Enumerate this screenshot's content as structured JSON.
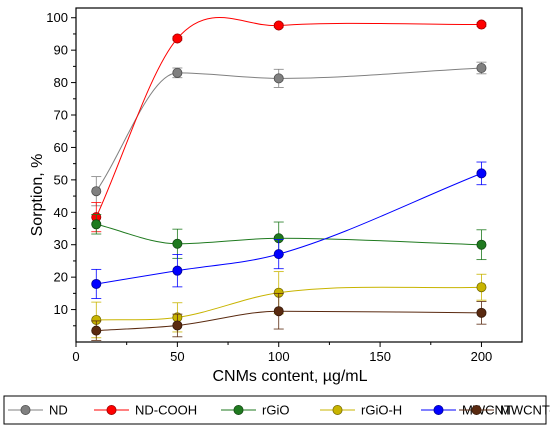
{
  "chart_data": {
    "type": "line",
    "xlabel": "CNMs content, µg/mL",
    "ylabel": "Sorption, %",
    "xlim": [
      0,
      220
    ],
    "ylim": [
      0,
      103
    ],
    "xticks": [
      0,
      50,
      100,
      150,
      200
    ],
    "yticks": [
      10,
      20,
      30,
      40,
      50,
      60,
      70,
      80,
      90,
      100
    ],
    "x": [
      10,
      50,
      100,
      200
    ],
    "grid": false,
    "legend_position": "bottom",
    "series": [
      {
        "name": "ND",
        "color": "#808080",
        "values": [
          46.5,
          83.0,
          81.3,
          84.5
        ],
        "errors": [
          4.5,
          1.5,
          2.8,
          1.8
        ]
      },
      {
        "name": "ND-COOH",
        "color": "#ff0000",
        "values": [
          38.5,
          93.6,
          97.6,
          97.9
        ],
        "errors": [
          4.5,
          0.5,
          0.5,
          0.5
        ]
      },
      {
        "name": "rGiO",
        "color": "#1f7a1f",
        "values": [
          36.3,
          30.3,
          32.0,
          30.0
        ],
        "errors": [
          3.0,
          4.5,
          5.0,
          4.6
        ]
      },
      {
        "name": "rGiO-H",
        "color": "#c8b400",
        "values": [
          6.8,
          7.6,
          15.2,
          16.9
        ],
        "errors": [
          5.5,
          4.5,
          6.5,
          4.0
        ]
      },
      {
        "name": "MWCNT",
        "color": "#0000ff",
        "values": [
          17.9,
          22.0,
          27.1,
          52.0
        ],
        "errors": [
          4.5,
          5.0,
          4.5,
          3.5
        ]
      },
      {
        "name": "MWCNT-H",
        "color": "#5a2a10",
        "values": [
          3.5,
          5.1,
          9.5,
          9.0
        ],
        "errors": [
          3.0,
          3.5,
          5.5,
          3.5
        ]
      }
    ]
  }
}
